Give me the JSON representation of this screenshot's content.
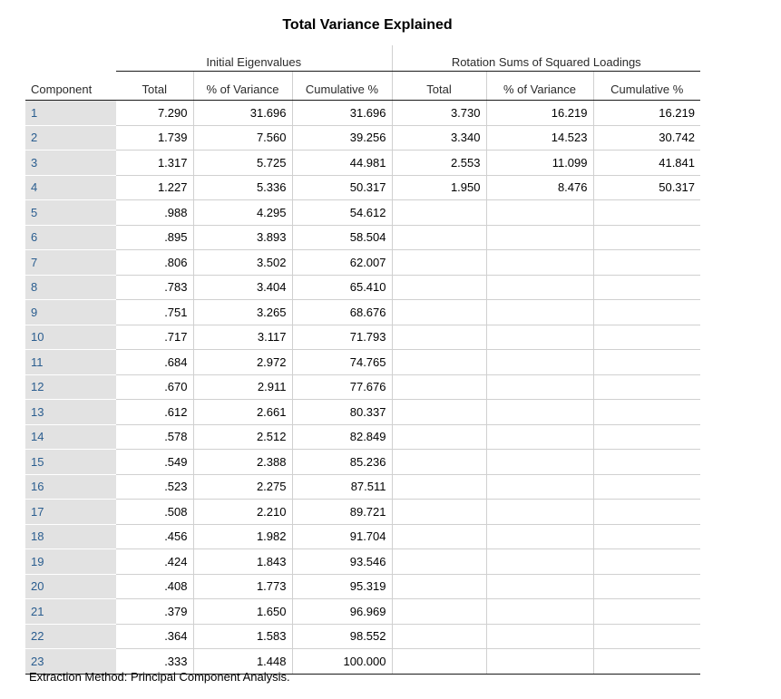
{
  "title": "Total Variance Explained",
  "header": {
    "group_initial": "Initial Eigenvalues",
    "group_rotation": "Rotation Sums of Squared Loadings",
    "col_component": "Component",
    "col_total": "Total",
    "col_pct": "% of Variance",
    "col_cum": "Cumulative %",
    "col_rot_total": "Total",
    "col_rot_pct": "% of Variance",
    "col_rot_cum": "Cumulative %"
  },
  "rows": [
    {
      "component": "1",
      "total": "7.290",
      "pct": "31.696",
      "cum": "31.696",
      "rot_total": "3.730",
      "rot_pct": "16.219",
      "rot_cum": "16.219"
    },
    {
      "component": "2",
      "total": "1.739",
      "pct": "7.560",
      "cum": "39.256",
      "rot_total": "3.340",
      "rot_pct": "14.523",
      "rot_cum": "30.742"
    },
    {
      "component": "3",
      "total": "1.317",
      "pct": "5.725",
      "cum": "44.981",
      "rot_total": "2.553",
      "rot_pct": "11.099",
      "rot_cum": "41.841"
    },
    {
      "component": "4",
      "total": "1.227",
      "pct": "5.336",
      "cum": "50.317",
      "rot_total": "1.950",
      "rot_pct": "8.476",
      "rot_cum": "50.317"
    },
    {
      "component": "5",
      "total": ".988",
      "pct": "4.295",
      "cum": "54.612",
      "rot_total": "",
      "rot_pct": "",
      "rot_cum": ""
    },
    {
      "component": "6",
      "total": ".895",
      "pct": "3.893",
      "cum": "58.504",
      "rot_total": "",
      "rot_pct": "",
      "rot_cum": ""
    },
    {
      "component": "7",
      "total": ".806",
      "pct": "3.502",
      "cum": "62.007",
      "rot_total": "",
      "rot_pct": "",
      "rot_cum": ""
    },
    {
      "component": "8",
      "total": ".783",
      "pct": "3.404",
      "cum": "65.410",
      "rot_total": "",
      "rot_pct": "",
      "rot_cum": ""
    },
    {
      "component": "9",
      "total": ".751",
      "pct": "3.265",
      "cum": "68.676",
      "rot_total": "",
      "rot_pct": "",
      "rot_cum": ""
    },
    {
      "component": "10",
      "total": ".717",
      "pct": "3.117",
      "cum": "71.793",
      "rot_total": "",
      "rot_pct": "",
      "rot_cum": ""
    },
    {
      "component": "11",
      "total": ".684",
      "pct": "2.972",
      "cum": "74.765",
      "rot_total": "",
      "rot_pct": "",
      "rot_cum": ""
    },
    {
      "component": "12",
      "total": ".670",
      "pct": "2.911",
      "cum": "77.676",
      "rot_total": "",
      "rot_pct": "",
      "rot_cum": ""
    },
    {
      "component": "13",
      "total": ".612",
      "pct": "2.661",
      "cum": "80.337",
      "rot_total": "",
      "rot_pct": "",
      "rot_cum": ""
    },
    {
      "component": "14",
      "total": ".578",
      "pct": "2.512",
      "cum": "82.849",
      "rot_total": "",
      "rot_pct": "",
      "rot_cum": ""
    },
    {
      "component": "15",
      "total": ".549",
      "pct": "2.388",
      "cum": "85.236",
      "rot_total": "",
      "rot_pct": "",
      "rot_cum": ""
    },
    {
      "component": "16",
      "total": ".523",
      "pct": "2.275",
      "cum": "87.511",
      "rot_total": "",
      "rot_pct": "",
      "rot_cum": ""
    },
    {
      "component": "17",
      "total": ".508",
      "pct": "2.210",
      "cum": "89.721",
      "rot_total": "",
      "rot_pct": "",
      "rot_cum": ""
    },
    {
      "component": "18",
      "total": ".456",
      "pct": "1.982",
      "cum": "91.704",
      "rot_total": "",
      "rot_pct": "",
      "rot_cum": ""
    },
    {
      "component": "19",
      "total": ".424",
      "pct": "1.843",
      "cum": "93.546",
      "rot_total": "",
      "rot_pct": "",
      "rot_cum": ""
    },
    {
      "component": "20",
      "total": ".408",
      "pct": "1.773",
      "cum": "95.319",
      "rot_total": "",
      "rot_pct": "",
      "rot_cum": ""
    },
    {
      "component": "21",
      "total": ".379",
      "pct": "1.650",
      "cum": "96.969",
      "rot_total": "",
      "rot_pct": "",
      "rot_cum": ""
    },
    {
      "component": "22",
      "total": ".364",
      "pct": "1.583",
      "cum": "98.552",
      "rot_total": "",
      "rot_pct": "",
      "rot_cum": ""
    },
    {
      "component": "23",
      "total": ".333",
      "pct": "1.448",
      "cum": "100.000",
      "rot_total": "",
      "rot_pct": "",
      "rot_cum": ""
    }
  ],
  "footnote": "Extraction Method: Principal Component Analysis.",
  "colors": {
    "component_bg": "#e2e2e2",
    "component_text": "#2a5d8f",
    "grid_line": "#d0d0d0",
    "rule_line": "#1a1a1a"
  }
}
